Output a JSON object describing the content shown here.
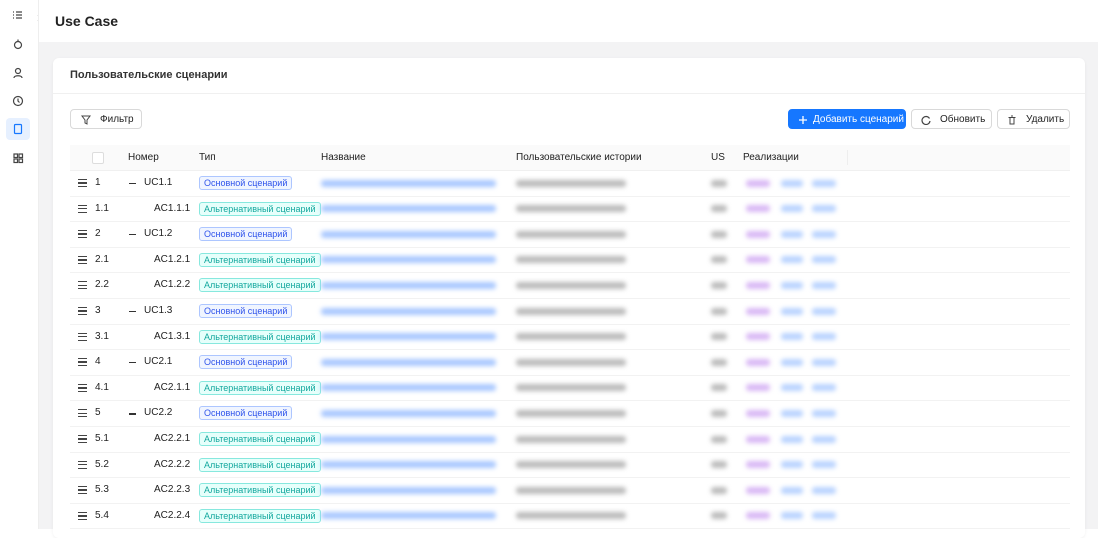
{
  "header": {
    "title": "Use Case"
  },
  "card": {
    "title": "Пользовательские сценарии"
  },
  "toolbar": {
    "filter": "Фильтр",
    "add": "Добавить сценарий",
    "refresh": "Обновить",
    "delete": "Удалить"
  },
  "table": {
    "columns": [
      "Номер",
      "Тип",
      "Название",
      "Пользовательские истории",
      "US",
      "Реализации"
    ],
    "rows": [
      [
        "1",
        "UC1.1",
        "Основной сценарий"
      ],
      [
        "1.1",
        "AC1.1.1",
        "Альтернативный сценарий"
      ],
      [
        "2",
        "UC1.2",
        "Основной сценарий"
      ],
      [
        "2.1",
        "AC1.2.1",
        "Альтернативный сценарий"
      ],
      [
        "2.2",
        "AC1.2.2",
        "Альтернативный сценарий"
      ],
      [
        "3",
        "UC1.3",
        "Основной сценарий"
      ],
      [
        "3.1",
        "AC1.3.1",
        "Альтернативный сценарий"
      ],
      [
        "4",
        "UC2.1",
        "Основной сценарий"
      ],
      [
        "4.1",
        "AC2.1.1",
        "Альтернативный сценарий"
      ],
      [
        "5",
        "UC2.2",
        "Основной сценарий"
      ],
      [
        "5.1",
        "AC2.2.1",
        "Альтернативный сценарий"
      ],
      [
        "5.2",
        "AC2.2.2",
        "Альтернативный сценарий"
      ],
      [
        "5.3",
        "AC2.2.3",
        "Альтернативный сценарий"
      ],
      [
        "5.4",
        "AC2.2.4",
        "Альтернативный сценарий"
      ]
    ]
  }
}
